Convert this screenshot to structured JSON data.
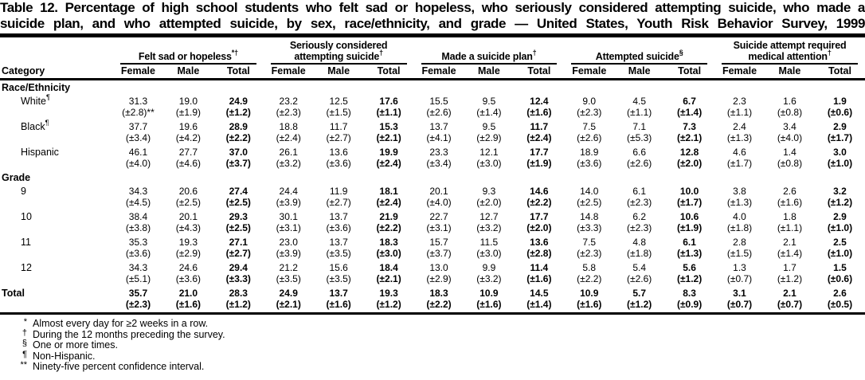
{
  "title": {
    "line1": "Table 12. Percentage of high school students who felt sad or hopeless, who seriously considered attempting suicide, who made a",
    "line2": "suicide plan, and who attempted suicide, by sex, race/ethnicity, and grade — United States, Youth Risk Behavior Survey, 1999"
  },
  "table": {
    "category_header": "Category",
    "sub_headers": [
      "Female",
      "Male",
      "Total"
    ],
    "groups": [
      {
        "lines": [
          "Felt sad or hopeless"
        ],
        "marker": "*†"
      },
      {
        "lines": [
          "Seriously considered",
          "attempting suicide"
        ],
        "marker": "†"
      },
      {
        "lines": [
          "Made a suicide plan"
        ],
        "marker": "†"
      },
      {
        "lines": [
          "Attempted suicide"
        ],
        "marker": "§"
      },
      {
        "lines": [
          "Suicide attempt required",
          "medical attention"
        ],
        "marker": "†"
      }
    ],
    "rows": [
      {
        "type": "section",
        "label": "Race/Ethnicity"
      },
      {
        "type": "data",
        "label": "White",
        "marker": "¶",
        "values": [
          "31.3",
          "19.0",
          "24.9",
          "23.2",
          "12.5",
          "17.6",
          "15.5",
          "9.5",
          "12.4",
          "9.0",
          "4.5",
          "6.7",
          "2.3",
          "1.6",
          "1.9"
        ],
        "ci": [
          "(±2.8)**",
          "(±1.9)",
          "(±1.2)",
          "(±2.3)",
          "(±1.5)",
          "(±1.1)",
          "(±2.6)",
          "(±1.4)",
          "(±1.6)",
          "(±2.3)",
          "(±1.1)",
          "(±1.4)",
          "(±1.1)",
          "(±0.8)",
          "(±0.6)"
        ]
      },
      {
        "type": "data",
        "label": "Black",
        "marker": "¶",
        "values": [
          "37.7",
          "19.6",
          "28.9",
          "18.8",
          "11.7",
          "15.3",
          "13.7",
          "9.5",
          "11.7",
          "7.5",
          "7.1",
          "7.3",
          "2.4",
          "3.4",
          "2.9"
        ],
        "ci": [
          "(±3.4)",
          "(±4.2)",
          "(±2.2)",
          "(±2.4)",
          "(±2.7)",
          "(±2.1)",
          "(±4.1)",
          "(±2.9)",
          "(±2.4)",
          "(±2.6)",
          "(±5.3)",
          "(±2.1)",
          "(±1.3)",
          "(±4.0)",
          "(±1.7)"
        ]
      },
      {
        "type": "data",
        "label": "Hispanic",
        "marker": "",
        "values": [
          "46.1",
          "27.7",
          "37.0",
          "26.1",
          "13.6",
          "19.9",
          "23.3",
          "12.1",
          "17.7",
          "18.9",
          "6.6",
          "12.8",
          "4.6",
          "1.4",
          "3.0"
        ],
        "ci": [
          "(±4.0)",
          "(±4.6)",
          "(±3.7)",
          "(±3.2)",
          "(±3.6)",
          "(±2.4)",
          "(±3.4)",
          "(±3.0)",
          "(±1.9)",
          "(±3.6)",
          "(±2.6)",
          "(±2.0)",
          "(±1.7)",
          "(±0.8)",
          "(±1.0)"
        ]
      },
      {
        "type": "section",
        "label": "Grade"
      },
      {
        "type": "data",
        "label": "9",
        "marker": "",
        "values": [
          "34.3",
          "20.6",
          "27.4",
          "24.4",
          "11.9",
          "18.1",
          "20.1",
          "9.3",
          "14.6",
          "14.0",
          "6.1",
          "10.0",
          "3.8",
          "2.6",
          "3.2"
        ],
        "ci": [
          "(±4.5)",
          "(±2.5)",
          "(±2.5)",
          "(±3.9)",
          "(±2.7)",
          "(±2.4)",
          "(±4.0)",
          "(±2.0)",
          "(±2.2)",
          "(±2.5)",
          "(±2.3)",
          "(±1.7)",
          "(±1.3)",
          "(±1.6)",
          "(±1.2)"
        ]
      },
      {
        "type": "data",
        "label": "10",
        "marker": "",
        "values": [
          "38.4",
          "20.1",
          "29.3",
          "30.1",
          "13.7",
          "21.9",
          "22.7",
          "12.7",
          "17.7",
          "14.8",
          "6.2",
          "10.6",
          "4.0",
          "1.8",
          "2.9"
        ],
        "ci": [
          "(±3.8)",
          "(±4.3)",
          "(±2.5)",
          "(±3.1)",
          "(±3.6)",
          "(±2.2)",
          "(±3.1)",
          "(±3.2)",
          "(±2.0)",
          "(±3.3)",
          "(±2.3)",
          "(±1.9)",
          "(±1.8)",
          "(±1.1)",
          "(±1.0)"
        ]
      },
      {
        "type": "data",
        "label": "11",
        "marker": "",
        "values": [
          "35.3",
          "19.3",
          "27.1",
          "23.0",
          "13.7",
          "18.3",
          "15.7",
          "11.5",
          "13.6",
          "7.5",
          "4.8",
          "6.1",
          "2.8",
          "2.1",
          "2.5"
        ],
        "ci": [
          "(±3.6)",
          "(±2.9)",
          "(±2.7)",
          "(±3.9)",
          "(±3.5)",
          "(±3.0)",
          "(±3.7)",
          "(±3.0)",
          "(±2.8)",
          "(±2.3)",
          "(±1.8)",
          "(±1.3)",
          "(±1.5)",
          "(±1.4)",
          "(±1.0)"
        ]
      },
      {
        "type": "data",
        "label": "12",
        "marker": "",
        "values": [
          "34.3",
          "24.6",
          "29.4",
          "21.2",
          "15.6",
          "18.4",
          "13.0",
          "9.9",
          "11.4",
          "5.8",
          "5.4",
          "5.6",
          "1.3",
          "1.7",
          "1.5"
        ],
        "ci": [
          "(±5.1)",
          "(±3.6)",
          "(±3.3)",
          "(±3.5)",
          "(±3.5)",
          "(±2.1)",
          "(±2.9)",
          "(±3.2)",
          "(±1.6)",
          "(±2.2)",
          "(±2.6)",
          "(±1.2)",
          "(±0.7)",
          "(±1.2)",
          "(±0.6)"
        ]
      },
      {
        "type": "data",
        "label": "Total",
        "marker": "",
        "bold": true,
        "values": [
          "35.7",
          "21.0",
          "28.3",
          "24.9",
          "13.7",
          "19.3",
          "18.3",
          "10.9",
          "14.5",
          "10.9",
          "5.7",
          "8.3",
          "3.1",
          "2.1",
          "2.6"
        ],
        "ci": [
          "(±2.3)",
          "(±1.6)",
          "(±1.2)",
          "(±2.1)",
          "(±1.6)",
          "(±1.2)",
          "(±2.2)",
          "(±1.6)",
          "(±1.4)",
          "(±1.6)",
          "(±1.2)",
          "(±0.9)",
          "(±0.7)",
          "(±0.7)",
          "(±0.5)"
        ]
      }
    ]
  },
  "footnotes": [
    {
      "marker": "*",
      "text": "Almost every day for ≥2 weeks in a row."
    },
    {
      "marker": "†",
      "text": "During the 12 months preceding the survey."
    },
    {
      "marker": "§",
      "text": "One or more times."
    },
    {
      "marker": "¶",
      "text": "Non-Hispanic."
    },
    {
      "marker": "**",
      "text": "Ninety-five percent confidence interval."
    }
  ]
}
